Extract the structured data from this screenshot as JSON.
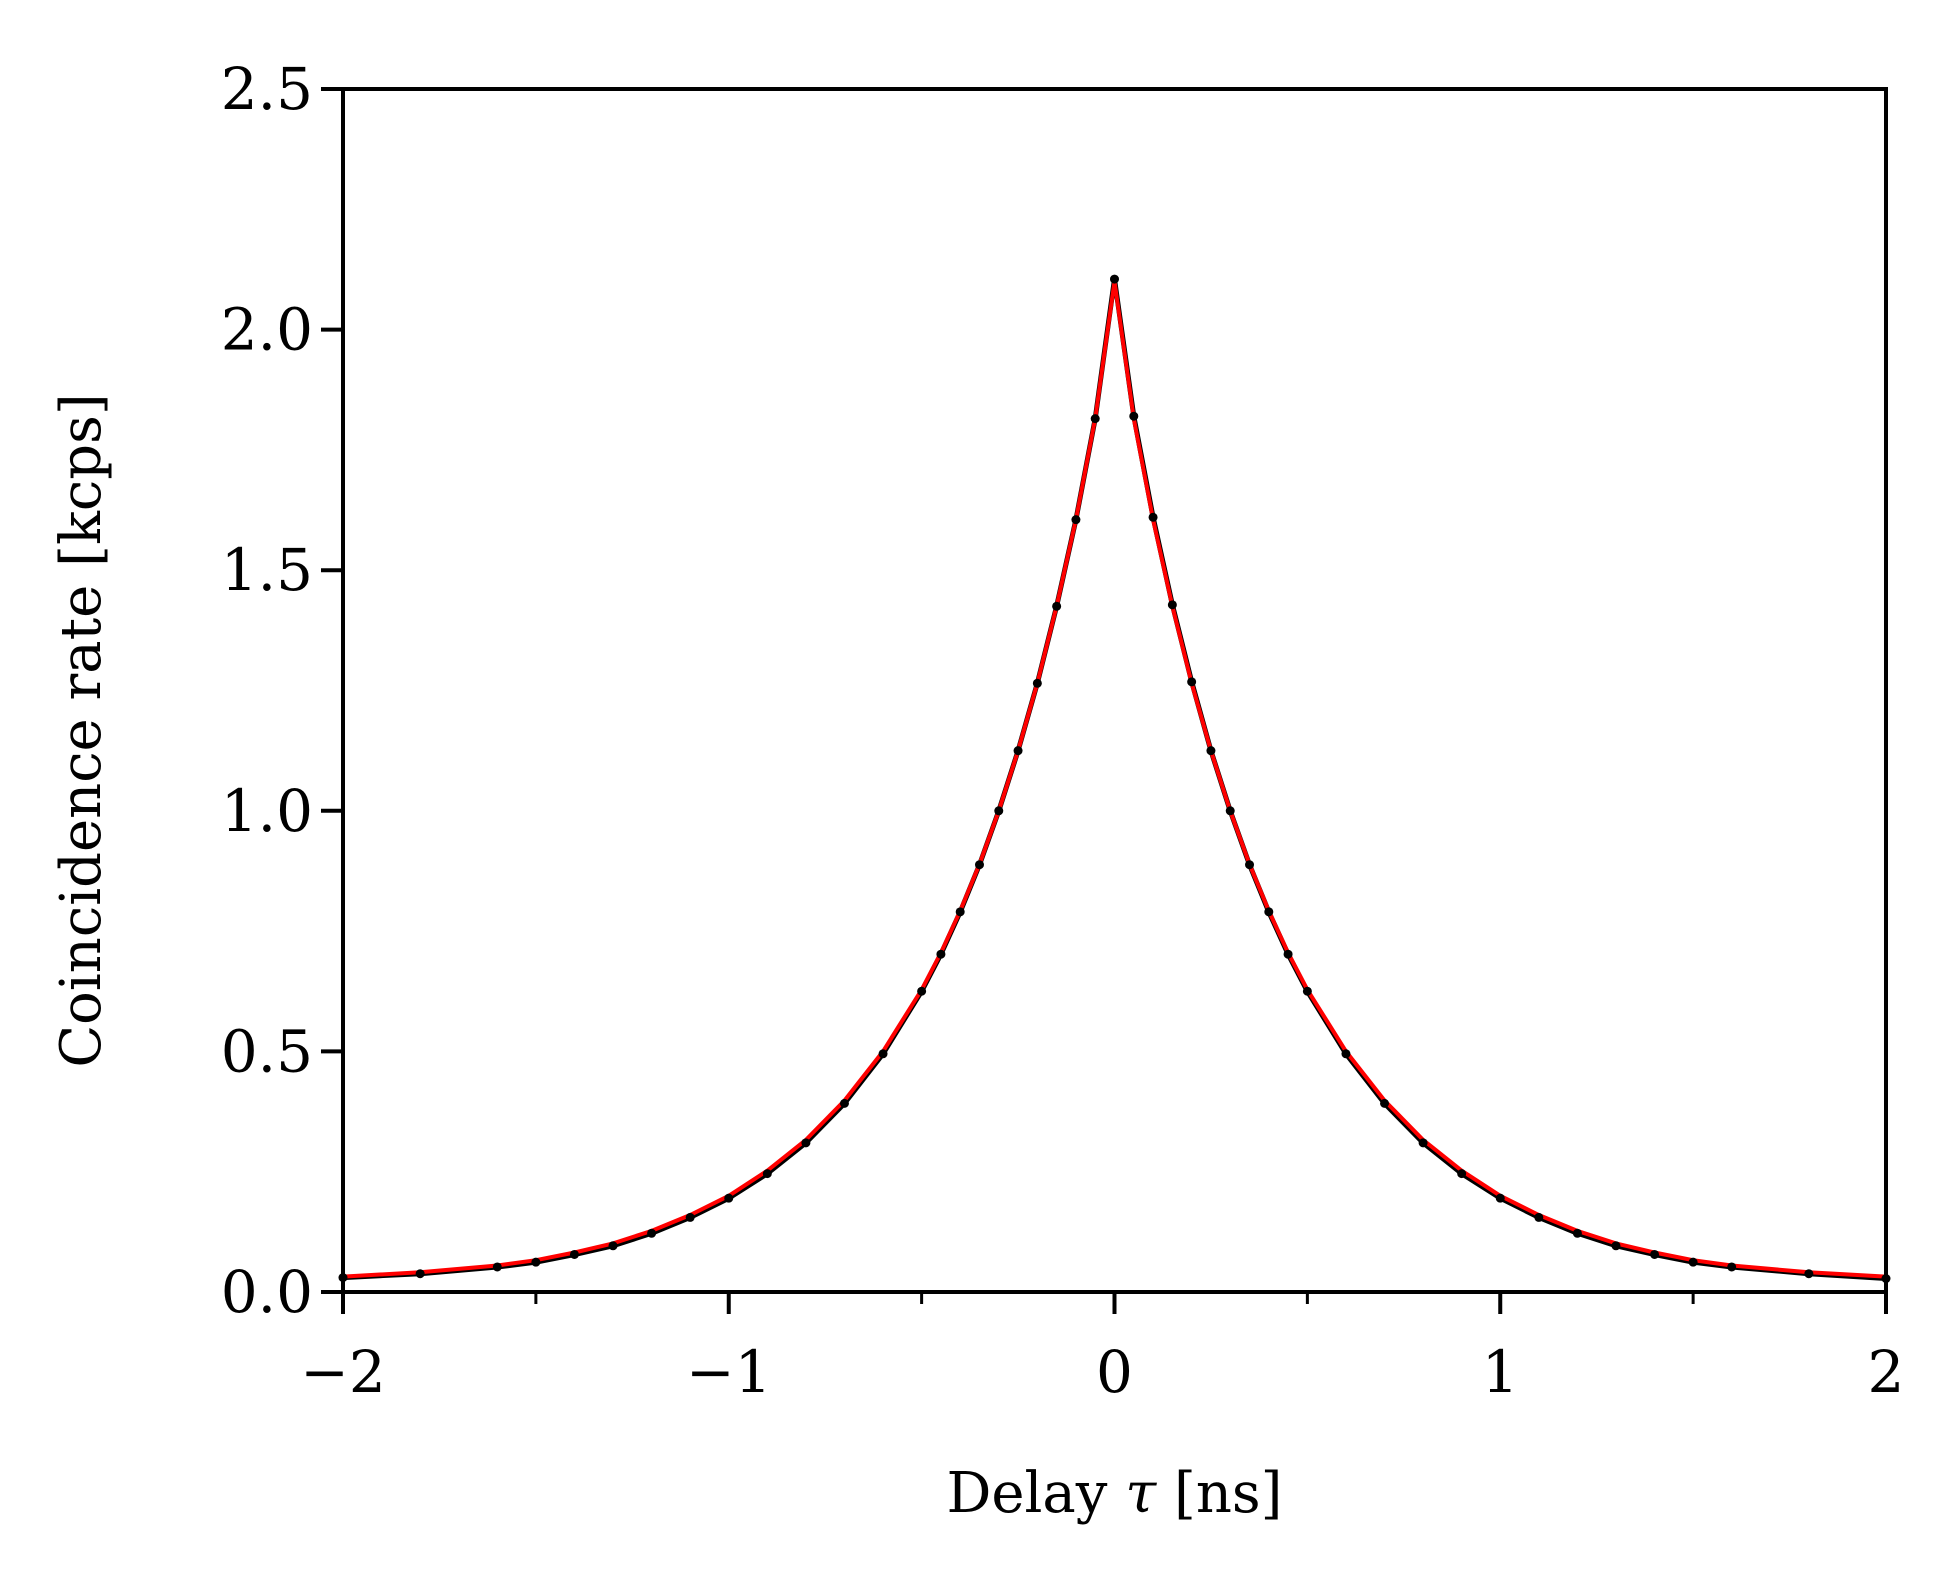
{
  "chart_data": {
    "type": "line",
    "title": "",
    "xlabel_prefix": "Delay ",
    "xlabel_symbol": "τ",
    "xlabel_suffix": " [ns]",
    "ylabel": "Coincidence rate [kcps]",
    "xlim": [
      -2,
      2
    ],
    "ylim": [
      0,
      2.5
    ],
    "x_major_ticks": [
      -2,
      -1,
      0,
      1,
      2
    ],
    "x_major_tick_labels": [
      "−2",
      "−1",
      "0",
      "1",
      "2"
    ],
    "x_minor_ticks": [
      -1.5,
      -0.5,
      0.5,
      1.5
    ],
    "y_ticks": [
      0,
      0.5,
      1.0,
      1.5,
      2.0,
      2.5
    ],
    "y_tick_labels": [
      "0.0",
      "0.5",
      "1.0",
      "1.5",
      "2.0",
      "2.5"
    ],
    "grid": false,
    "legend": "none",
    "series": [
      {
        "kind": "measured-points",
        "color": "#000000",
        "points": [
          [
            -2.0,
            0.03
          ],
          [
            -1.8,
            0.038
          ],
          [
            -1.6,
            0.052
          ],
          [
            -1.5,
            0.062
          ],
          [
            -1.4,
            0.078
          ],
          [
            -1.3,
            0.096
          ],
          [
            -1.2,
            0.122
          ],
          [
            -1.1,
            0.155
          ],
          [
            -1.0,
            0.195
          ],
          [
            -0.9,
            0.246
          ],
          [
            -0.8,
            0.31
          ],
          [
            -0.7,
            0.392
          ],
          [
            -0.6,
            0.495
          ],
          [
            -0.5,
            0.625
          ],
          [
            -0.45,
            0.702
          ],
          [
            -0.4,
            0.79
          ],
          [
            -0.35,
            0.888
          ],
          [
            -0.3,
            1.0
          ],
          [
            -0.25,
            1.125
          ],
          [
            -0.2,
            1.265
          ],
          [
            -0.15,
            1.425
          ],
          [
            -0.1,
            1.605
          ],
          [
            -0.05,
            1.815
          ],
          [
            0.0,
            2.105
          ],
          [
            0.05,
            1.82
          ],
          [
            0.1,
            1.61
          ],
          [
            0.15,
            1.428
          ],
          [
            0.2,
            1.268
          ],
          [
            0.25,
            1.125
          ],
          [
            0.3,
            1.0
          ],
          [
            0.35,
            0.888
          ],
          [
            0.4,
            0.79
          ],
          [
            0.45,
            0.702
          ],
          [
            0.5,
            0.625
          ],
          [
            0.6,
            0.495
          ],
          [
            0.7,
            0.392
          ],
          [
            0.8,
            0.31
          ],
          [
            0.9,
            0.246
          ],
          [
            1.0,
            0.195
          ],
          [
            1.1,
            0.155
          ],
          [
            1.2,
            0.122
          ],
          [
            1.3,
            0.096
          ],
          [
            1.4,
            0.078
          ],
          [
            1.5,
            0.062
          ],
          [
            1.6,
            0.052
          ],
          [
            1.8,
            0.038
          ],
          [
            2.0,
            0.028
          ]
        ]
      },
      {
        "kind": "fit-curve",
        "color": "#ff0000",
        "points": [
          [
            -2.0,
            0.032
          ],
          [
            -1.8,
            0.041
          ],
          [
            -1.6,
            0.055
          ],
          [
            -1.5,
            0.066
          ],
          [
            -1.4,
            0.082
          ],
          [
            -1.3,
            0.101
          ],
          [
            -1.2,
            0.127
          ],
          [
            -1.1,
            0.16
          ],
          [
            -1.0,
            0.2
          ],
          [
            -0.9,
            0.252
          ],
          [
            -0.8,
            0.316
          ],
          [
            -0.7,
            0.398
          ],
          [
            -0.6,
            0.5
          ],
          [
            -0.5,
            0.628
          ],
          [
            -0.45,
            0.705
          ],
          [
            -0.4,
            0.792
          ],
          [
            -0.35,
            0.889
          ],
          [
            -0.3,
            1.0
          ],
          [
            -0.25,
            1.125
          ],
          [
            -0.2,
            1.265
          ],
          [
            -0.15,
            1.425
          ],
          [
            -0.1,
            1.605
          ],
          [
            -0.05,
            1.815
          ],
          [
            0.0,
            2.1
          ],
          [
            0.05,
            1.815
          ],
          [
            0.1,
            1.605
          ],
          [
            0.15,
            1.425
          ],
          [
            0.2,
            1.265
          ],
          [
            0.25,
            1.125
          ],
          [
            0.3,
            1.0
          ],
          [
            0.35,
            0.889
          ],
          [
            0.4,
            0.792
          ],
          [
            0.45,
            0.705
          ],
          [
            0.5,
            0.628
          ],
          [
            0.6,
            0.5
          ],
          [
            0.7,
            0.398
          ],
          [
            0.8,
            0.316
          ],
          [
            0.9,
            0.252
          ],
          [
            1.0,
            0.2
          ],
          [
            1.1,
            0.16
          ],
          [
            1.2,
            0.127
          ],
          [
            1.3,
            0.101
          ],
          [
            1.4,
            0.082
          ],
          [
            1.5,
            0.066
          ],
          [
            1.6,
            0.055
          ],
          [
            1.8,
            0.041
          ],
          [
            2.0,
            0.032
          ]
        ]
      }
    ]
  }
}
